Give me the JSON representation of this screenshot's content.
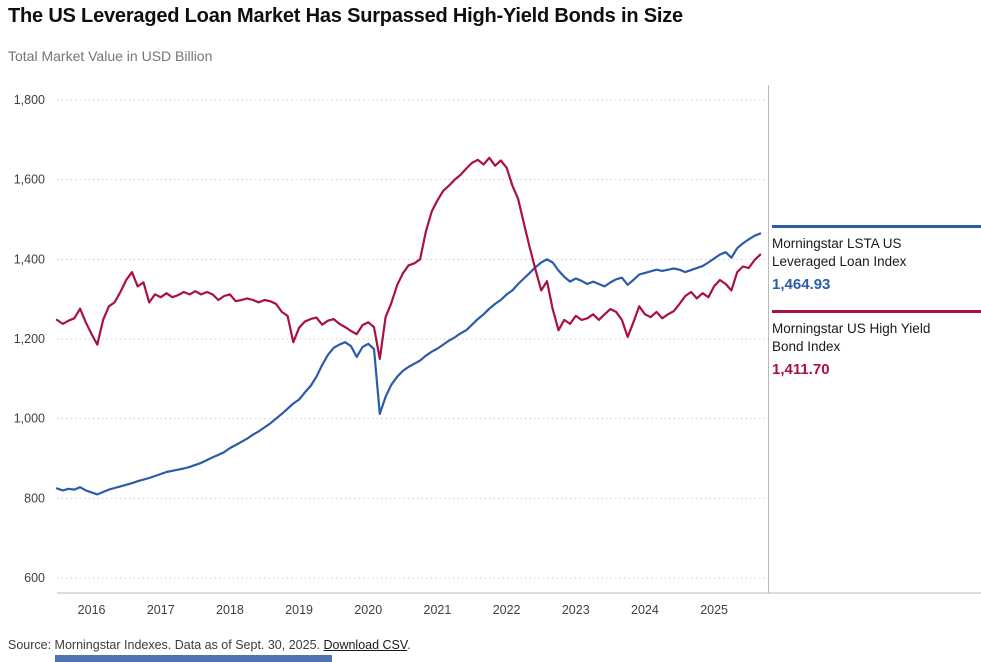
{
  "header": {
    "title": "The US Leveraged Loan Market Has Surpassed High-Yield Bonds in Size",
    "subtitle": "Total Market Value in USD Billion"
  },
  "legend": [
    {
      "label": "Morningstar LSTA US Leveraged Loan Index",
      "value": "1,464.93",
      "color": "#2a5ca8"
    },
    {
      "label": "Morningstar US High Yield Bond Index",
      "value": "1,411.70",
      "color": "#aa1040"
    }
  ],
  "footer": {
    "source_text": "Source: Morningstar Indexes. Data as of Sept. 30, 2025. ",
    "link_label": "Download CSV",
    "suffix": "."
  },
  "colors": {
    "loan_blue": "#2a5ca8",
    "high_yield_red": "#aa1040",
    "grid_gray": "#cfcfcf",
    "axis_gray": "#b9b9b9",
    "subtitle_gray": "#757575",
    "bottom_bar_blue": "#4f74b4"
  },
  "chart_data": {
    "type": "line",
    "title": "The US Leveraged Loan Market Has Surpassed High-Yield Bonds in Size",
    "ylabel": "Total Market Value in USD Billion",
    "xlabel": "",
    "ylim": [
      600,
      1800
    ],
    "yticks": [
      600,
      800,
      1000,
      1200,
      1400,
      1600,
      1800
    ],
    "ytick_labels": [
      "600",
      "800",
      "1,000",
      "1,200",
      "1,400",
      "1,600",
      "1,800"
    ],
    "xtick_years": [
      2016,
      2017,
      2018,
      2019,
      2020,
      2021,
      2022,
      2023,
      2024,
      2025
    ],
    "x_domain": [
      2015.5,
      2025.75
    ],
    "frequency": "monthly",
    "x_start": "2015-07",
    "x_end": "2025-09",
    "grid": "horizontal-dotted",
    "legend_position": "right",
    "series": [
      {
        "name": "Morningstar LSTA US Leveraged Loan Index",
        "color": "#2a5ca8",
        "end_label": "1,464.93",
        "values": [
          825,
          820,
          824,
          822,
          828,
          820,
          815,
          810,
          816,
          822,
          826,
          830,
          834,
          838,
          843,
          847,
          851,
          856,
          861,
          866,
          869,
          872,
          875,
          879,
          884,
          889,
          896,
          903,
          909,
          916,
          926,
          934,
          942,
          950,
          960,
          968,
          978,
          988,
          1000,
          1012,
          1025,
          1038,
          1048,
          1066,
          1082,
          1105,
          1135,
          1160,
          1178,
          1186,
          1192,
          1182,
          1155,
          1180,
          1188,
          1175,
          1012,
          1055,
          1085,
          1105,
          1120,
          1130,
          1138,
          1146,
          1158,
          1168,
          1176,
          1186,
          1196,
          1204,
          1214,
          1222,
          1236,
          1250,
          1262,
          1276,
          1288,
          1298,
          1312,
          1322,
          1338,
          1352,
          1366,
          1380,
          1392,
          1400,
          1392,
          1372,
          1356,
          1344,
          1352,
          1346,
          1338,
          1344,
          1338,
          1332,
          1342,
          1350,
          1354,
          1336,
          1348,
          1362,
          1366,
          1370,
          1374,
          1371,
          1374,
          1377,
          1374,
          1368,
          1373,
          1378,
          1383,
          1392,
          1402,
          1412,
          1418,
          1404,
          1428,
          1440,
          1450,
          1459,
          1464.93
        ]
      },
      {
        "name": "Morningstar US High Yield Bond Index",
        "color": "#aa1040",
        "end_label": "1,411.70",
        "values": [
          1248,
          1238,
          1246,
          1252,
          1276,
          1242,
          1212,
          1186,
          1248,
          1282,
          1292,
          1318,
          1348,
          1368,
          1332,
          1342,
          1292,
          1312,
          1305,
          1315,
          1305,
          1310,
          1318,
          1312,
          1320,
          1312,
          1318,
          1312,
          1298,
          1308,
          1312,
          1295,
          1298,
          1302,
          1298,
          1292,
          1298,
          1295,
          1288,
          1268,
          1258,
          1192,
          1228,
          1244,
          1250,
          1254,
          1236,
          1246,
          1250,
          1238,
          1230,
          1220,
          1212,
          1235,
          1242,
          1230,
          1150,
          1255,
          1290,
          1335,
          1365,
          1385,
          1390,
          1400,
          1470,
          1520,
          1548,
          1572,
          1585,
          1600,
          1612,
          1628,
          1642,
          1650,
          1638,
          1655,
          1635,
          1648,
          1630,
          1585,
          1552,
          1490,
          1430,
          1375,
          1322,
          1345,
          1275,
          1222,
          1248,
          1238,
          1258,
          1248,
          1252,
          1262,
          1248,
          1262,
          1275,
          1268,
          1248,
          1205,
          1242,
          1282,
          1262,
          1255,
          1268,
          1252,
          1262,
          1270,
          1288,
          1308,
          1318,
          1302,
          1315,
          1305,
          1332,
          1348,
          1338,
          1322,
          1368,
          1382,
          1378,
          1398,
          1411.7
        ]
      }
    ]
  }
}
